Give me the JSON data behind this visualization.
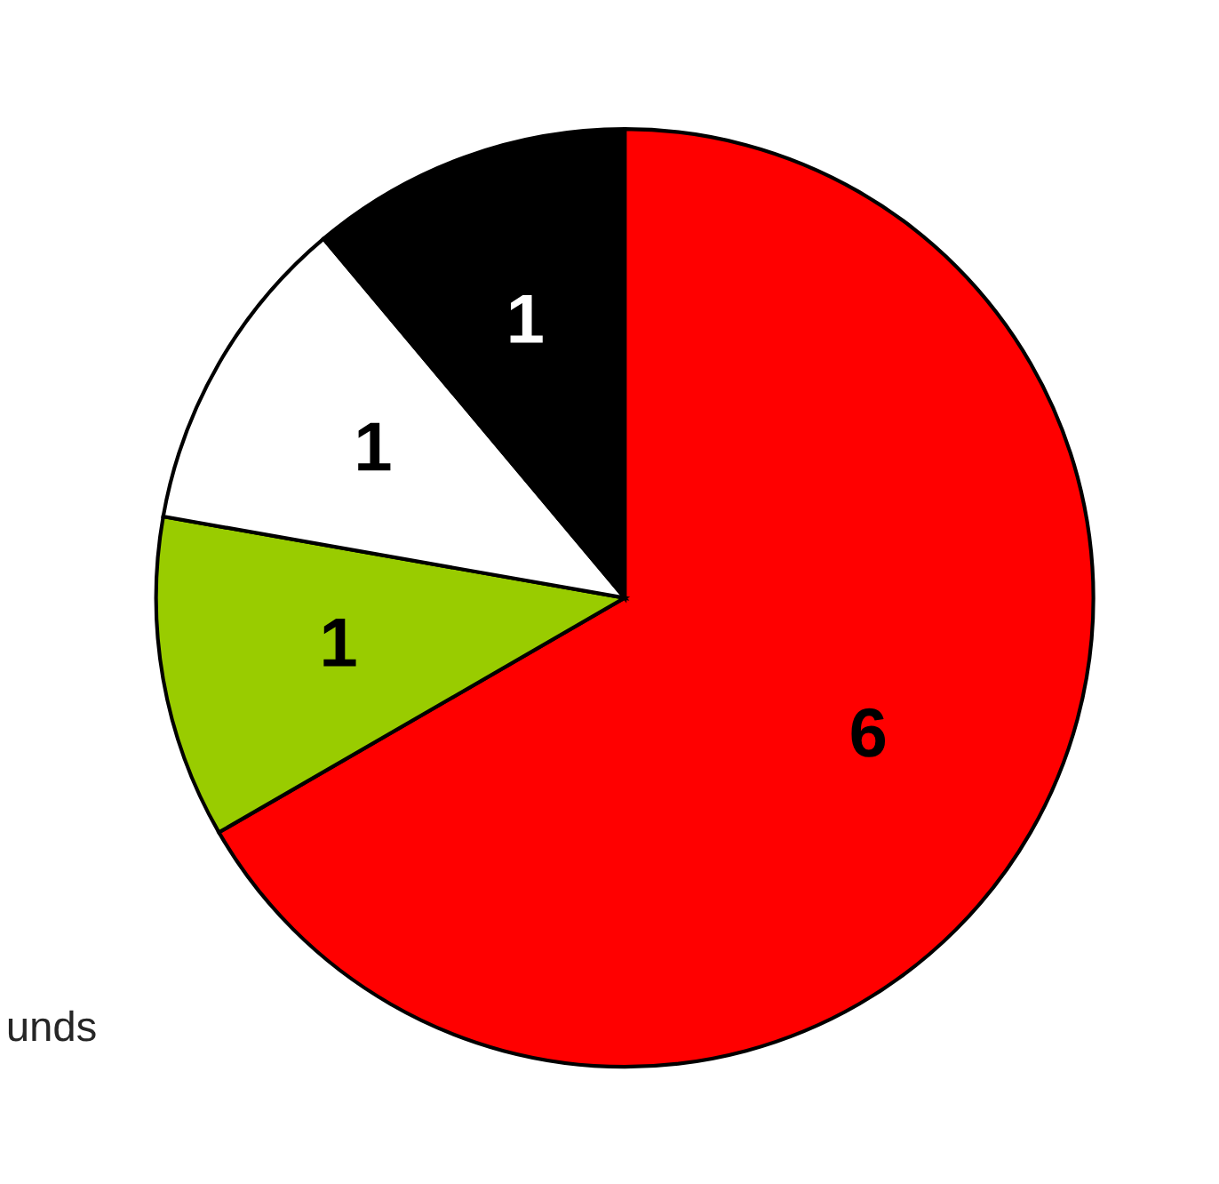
{
  "chart_data": {
    "type": "pie",
    "categories": [
      null,
      null,
      null,
      null
    ],
    "values": [
      6,
      1,
      1,
      1
    ],
    "colors": [
      "#ff0000",
      "#99cc00",
      "#ffffff",
      "#000000"
    ],
    "data_labels": true,
    "annotations": [
      "unds"
    ]
  }
}
